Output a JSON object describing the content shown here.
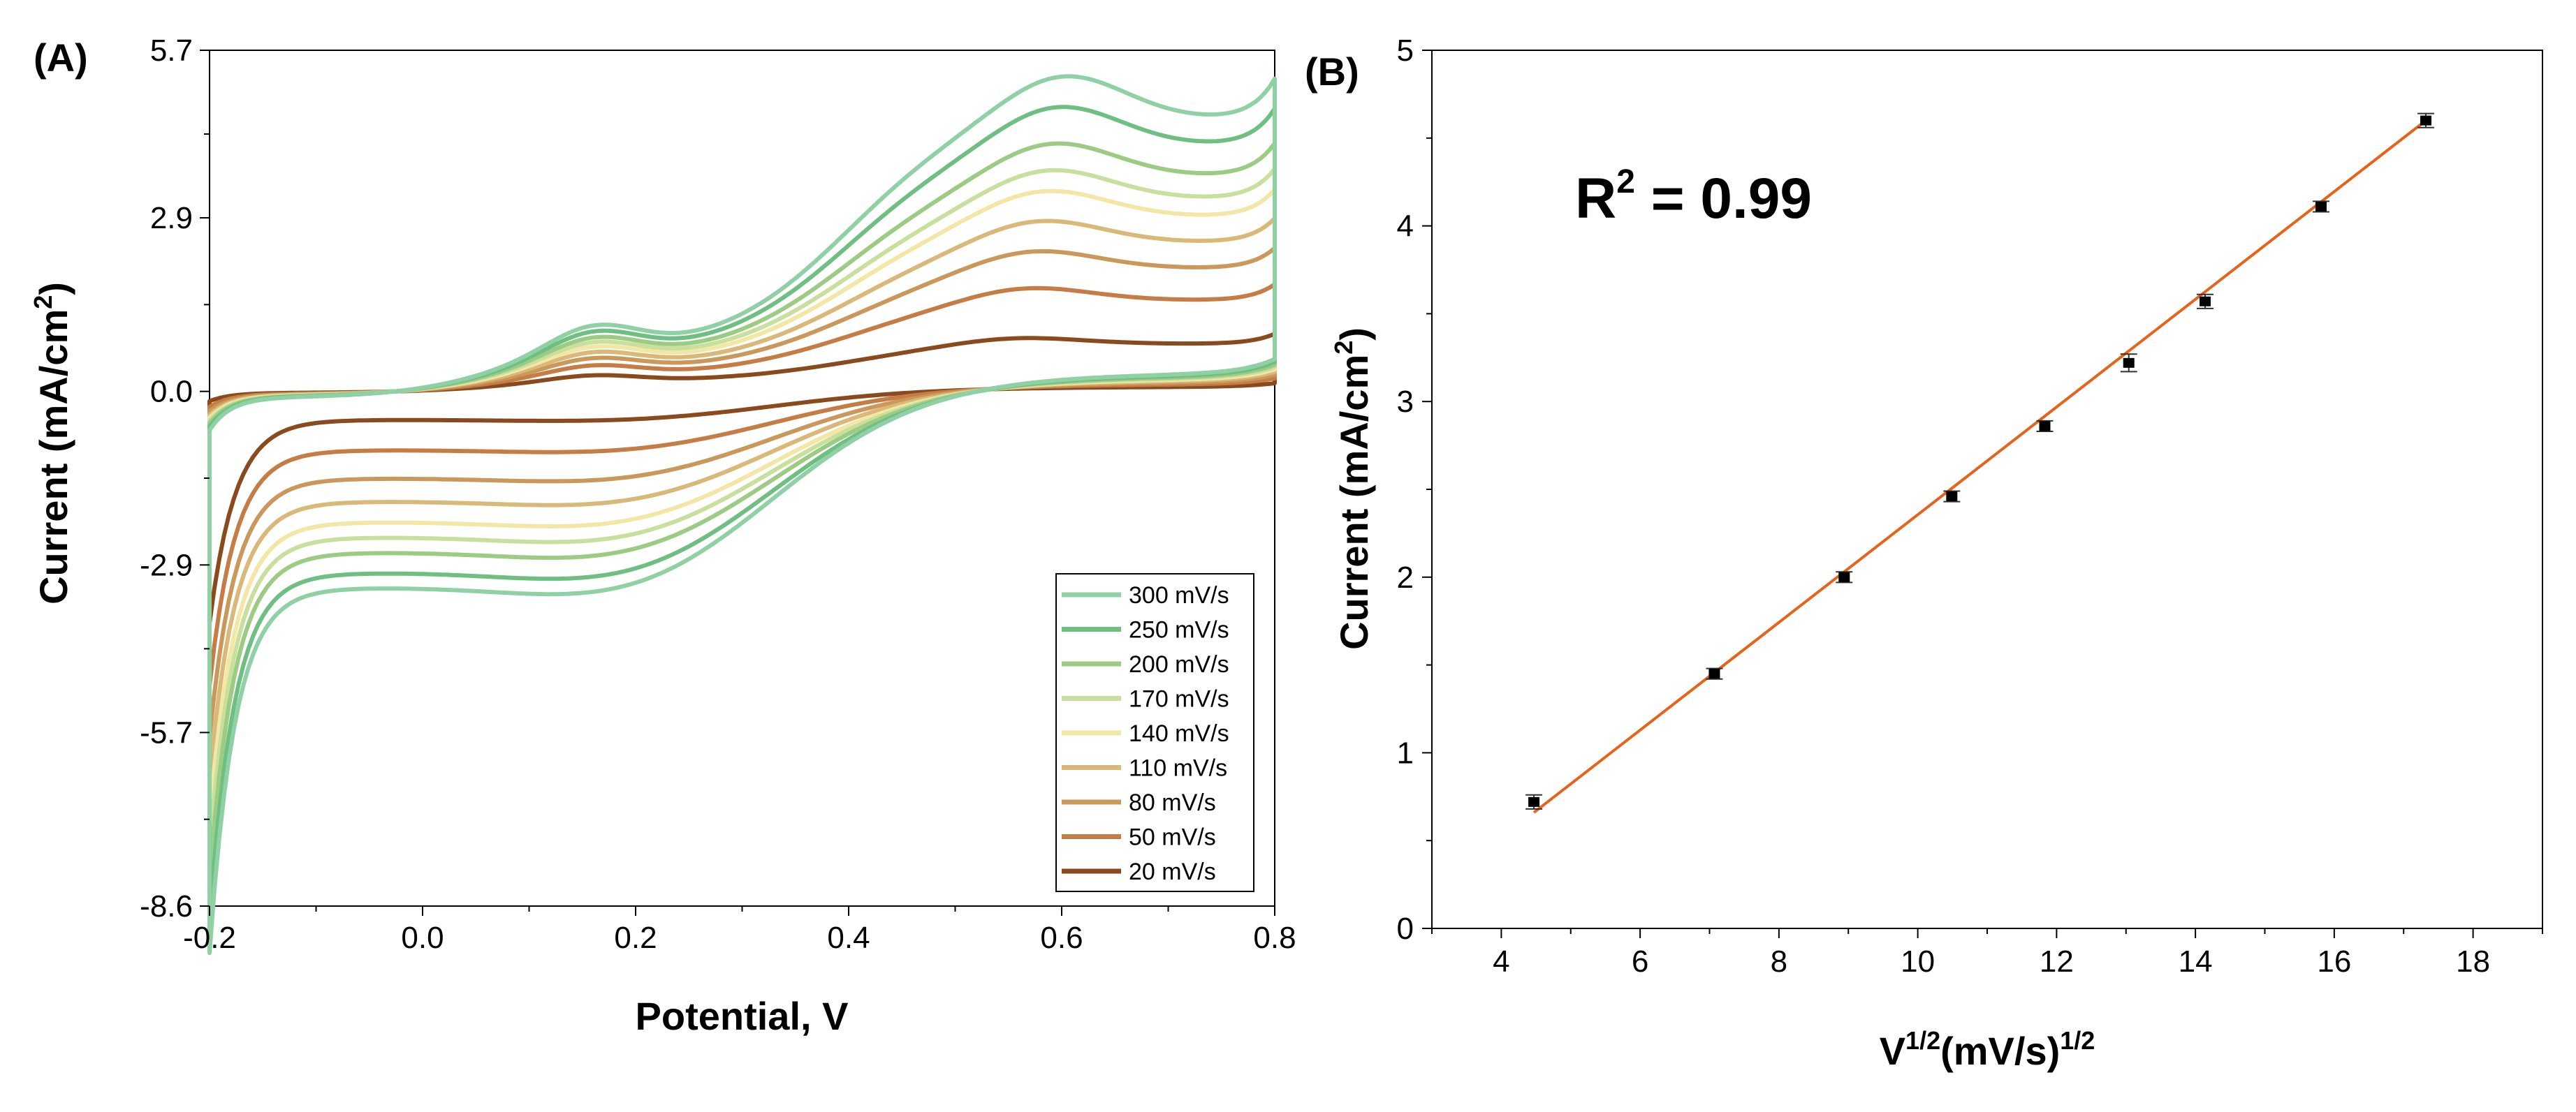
{
  "panels": {
    "a_label": "(A)",
    "b_label": "(B)"
  },
  "chart_data": [
    {
      "type": "line",
      "title": "",
      "xlabel": "Potential, V",
      "ylabel": "Current (mA/cm2)",
      "ylabel_main": "Current (mA/cm",
      "ylabel_sup": "2",
      "ylabel_tail": ")",
      "xlim": [
        -0.2,
        0.8
      ],
      "ylim": [
        -8.6,
        5.7
      ],
      "xticks": [
        -0.2,
        0.0,
        0.2,
        0.4,
        0.6,
        0.8
      ],
      "xtick_labels": [
        "-0.2",
        "0.0",
        "0.2",
        "0.4",
        "0.6",
        "0.8"
      ],
      "yticks": [
        -8.6,
        -5.7,
        -2.9,
        0.0,
        2.9,
        5.7
      ],
      "ytick_labels": [
        "-8.6",
        "-5.7",
        "-2.9",
        "0.0",
        "2.9",
        "5.7"
      ],
      "grid": false,
      "legend_position": "bottom-right",
      "series": [
        {
          "name": "300 mV/s",
          "color": "#8fd1a4",
          "scale": 1.0,
          "ipa": 4.65,
          "ipc": -3.9
        },
        {
          "name": "250 mV/s",
          "color": "#6fbf82",
          "scale": 0.91,
          "ipa": 4.2,
          "ipc": -3.6
        },
        {
          "name": "200 mV/s",
          "color": "#9ccb84",
          "scale": 0.82,
          "ipa": 3.65,
          "ipc": -3.2
        },
        {
          "name": "170 mV/s",
          "color": "#c9df9d",
          "scale": 0.75,
          "ipa": 3.25,
          "ipc": -2.9
        },
        {
          "name": "140 mV/s",
          "color": "#f3e7a6",
          "scale": 0.68,
          "ipa": 2.95,
          "ipc": -2.6
        },
        {
          "name": "110 mV/s",
          "color": "#d9b878",
          "scale": 0.6,
          "ipa": 2.5,
          "ipc": -2.2
        },
        {
          "name": "80  mV/s",
          "color": "#c9985a",
          "scale": 0.51,
          "ipa": 2.05,
          "ipc": -1.75
        },
        {
          "name": "50  mV/s",
          "color": "#c67c45",
          "scale": 0.4,
          "ipa": 1.5,
          "ipc": -1.2
        },
        {
          "name": "20  mV/s",
          "color": "#8b4a1e",
          "scale": 0.25,
          "ipa": 0.75,
          "ipc": -0.6
        }
      ]
    },
    {
      "type": "scatter",
      "title": "",
      "xlabel": "V1/2(mV/s)1/2",
      "xlabel_parts": [
        "V",
        "1/2",
        "(mV/s)",
        "1/2"
      ],
      "ylabel": "Current (mA/cm2)",
      "ylabel_main": "Current (mA/cm",
      "ylabel_sup": "2",
      "ylabel_tail": ")",
      "xlim": [
        3,
        19
      ],
      "ylim": [
        0,
        5
      ],
      "xticks": [
        4,
        6,
        8,
        10,
        12,
        14,
        16,
        18
      ],
      "yticks": [
        0,
        1,
        2,
        3,
        4,
        5
      ],
      "grid": false,
      "annotation": {
        "main": "R",
        "sup": "2",
        "tail": " = 0.99"
      },
      "x": [
        4.47,
        7.07,
        8.94,
        10.49,
        11.83,
        13.04,
        14.14,
        15.81,
        17.32
      ],
      "y": [
        0.72,
        1.45,
        2.0,
        2.46,
        2.86,
        3.22,
        3.57,
        4.11,
        4.6
      ],
      "yerr": [
        0.04,
        0.03,
        0.03,
        0.03,
        0.03,
        0.05,
        0.04,
        0.03,
        0.04
      ],
      "fit": {
        "x": [
          4.47,
          17.32
        ],
        "y": [
          0.66,
          4.6
        ],
        "color": "#e8621a"
      }
    }
  ]
}
